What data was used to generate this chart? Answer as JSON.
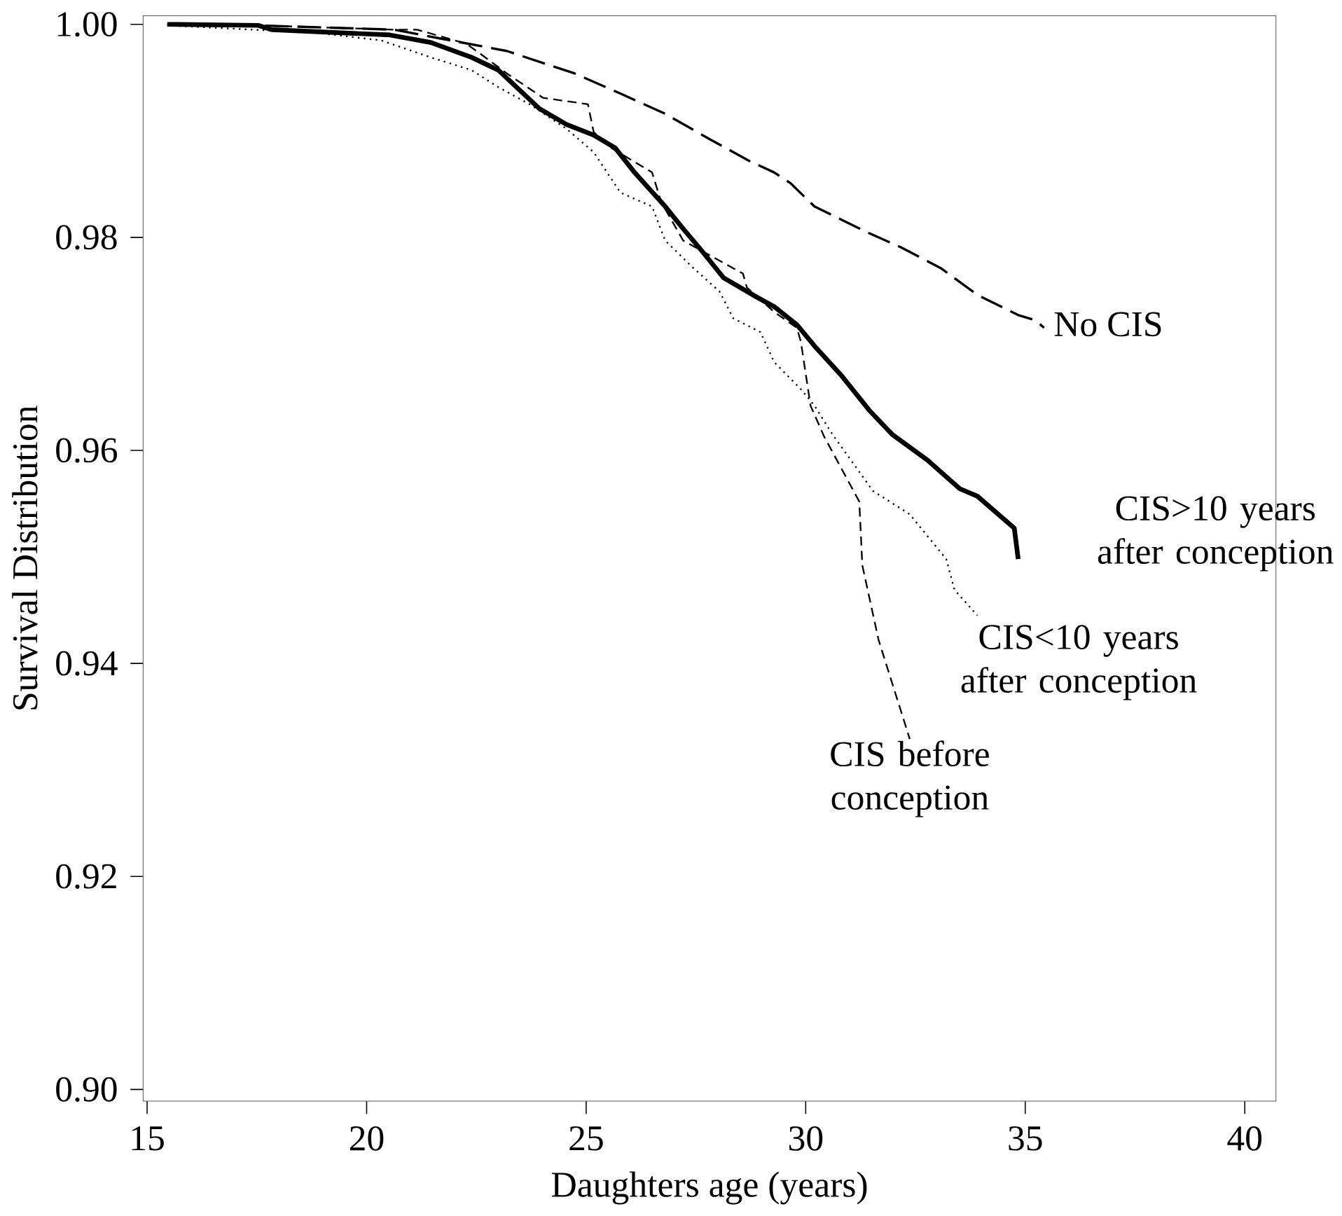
{
  "chart_data": {
    "type": "line",
    "xlabel": "Daughters age (years)",
    "ylabel": "Survival Distribution",
    "xlim": [
      14.91,
      40.71
    ],
    "ylim": [
      0.8989,
      1.0008
    ],
    "xticks": [
      15,
      20,
      25,
      30,
      35,
      40
    ],
    "yticks": [
      {
        "value": 0.9,
        "label": "0.90"
      },
      0.92,
      0.94,
      0.96,
      0.98,
      {
        "value": 1.0,
        "label": "1.00"
      }
    ],
    "legend": false,
    "grid": false,
    "marker": "none",
    "series": [
      {
        "name": "No CIS",
        "color": "#000000",
        "line_style": "dashed",
        "x": [
          15.46,
          17.53,
          20.62,
          21.64,
          23.19,
          24.73,
          25.78,
          26.8,
          27.82,
          28.75,
          29.28,
          29.65,
          30.2,
          31.44,
          32.15,
          33.08,
          33.91,
          34.84,
          35.24,
          35.43
        ],
        "values": [
          1.0,
          0.9999,
          0.9995,
          0.9987,
          0.9975,
          0.9954,
          0.9935,
          0.9916,
          0.9892,
          0.9871,
          0.9861,
          0.9851,
          0.9829,
          0.9804,
          0.9791,
          0.9771,
          0.9746,
          0.9727,
          0.9722,
          0.9715
        ]
      },
      {
        "name": "CIS>10 years after conception",
        "color": "#000000",
        "line_style": "solid",
        "x": [
          15.46,
          17.53,
          17.84,
          20.53,
          21.46,
          22.39,
          23.0,
          23.93,
          24.55,
          25.17,
          25.66,
          26.1,
          26.8,
          27.21,
          27.64,
          28.13,
          28.88,
          29.28,
          29.8,
          30.2,
          30.82,
          31.44,
          31.97,
          32.77,
          33.51,
          33.91,
          34.75,
          34.84
        ],
        "values": [
          1.0,
          0.9999,
          0.9995,
          0.999,
          0.9983,
          0.9969,
          0.9957,
          0.9921,
          0.9906,
          0.9896,
          0.9884,
          0.9861,
          0.9829,
          0.9808,
          0.9787,
          0.9762,
          0.9744,
          0.9735,
          0.9718,
          0.9698,
          0.967,
          0.9638,
          0.9615,
          0.9591,
          0.9564,
          0.9557,
          0.9527,
          0.9498
        ]
      },
      {
        "name": "CIS<10 years after conception",
        "color": "#000000",
        "line_style": "dotted",
        "x": [
          15.46,
          18.86,
          20.32,
          21.46,
          22.39,
          23.0,
          23.71,
          24.55,
          25.17,
          25.78,
          26.5,
          26.8,
          27.42,
          28.04,
          28.35,
          28.97,
          29.28,
          29.9,
          30.2,
          30.61,
          31.53,
          32.37,
          33.2,
          33.39,
          33.91
        ],
        "values": [
          0.9999,
          0.9992,
          0.9985,
          0.9969,
          0.9957,
          0.9941,
          0.9925,
          0.9902,
          0.988,
          0.9842,
          0.9829,
          0.9797,
          0.9772,
          0.9749,
          0.9724,
          0.9711,
          0.9683,
          0.9657,
          0.9642,
          0.9615,
          0.9562,
          0.954,
          0.9498,
          0.9469,
          0.9445
        ]
      },
      {
        "name": "CIS before conception",
        "color": "#000000",
        "line_style": "dashed",
        "x": [
          15.46,
          17.53,
          20.62,
          21.15,
          22.26,
          22.57,
          23.19,
          24.02,
          25.04,
          25.17,
          25.57,
          26.5,
          26.71,
          27.21,
          28.57,
          28.66,
          29.28,
          29.8,
          29.89,
          30.11,
          30.42,
          31.22,
          31.29,
          31.66,
          32.37
        ],
        "values": [
          1.0,
          0.9999,
          0.9995,
          0.9995,
          0.9982,
          0.9973,
          0.9954,
          0.9931,
          0.9925,
          0.9899,
          0.9884,
          0.9861,
          0.9833,
          0.9797,
          0.9766,
          0.9753,
          0.973,
          0.9715,
          0.9702,
          0.9642,
          0.9613,
          0.9552,
          0.9492,
          0.9422,
          0.9329
        ]
      }
    ]
  }
}
